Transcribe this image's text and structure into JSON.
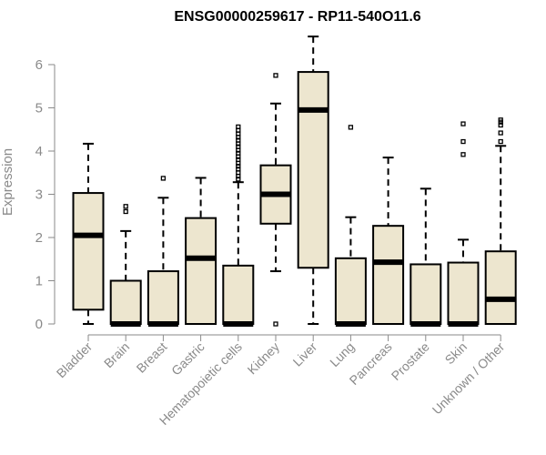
{
  "chart_data": {
    "type": "boxplot",
    "title": "ENSG00000259617 - RP11-540O11.6",
    "xlabel": "",
    "ylabel": "Expression",
    "ylim": [
      0,
      6.8
    ],
    "yticks": [
      0,
      1,
      2,
      3,
      4,
      5,
      6
    ],
    "grid": false,
    "colors": {
      "box_fill": "#ede6cf",
      "stroke": "#000000",
      "axis": "#8a8a8a"
    },
    "categories": [
      "Bladder",
      "Brain",
      "Breast",
      "Gastric",
      "Hematopoietic cells",
      "Kidney",
      "Liver",
      "Lung",
      "Pancreas",
      "Prostate",
      "Skin",
      "Unknown / Other"
    ],
    "boxes": [
      {
        "category": "Bladder",
        "whisker_low": 0.0,
        "q1": 0.33,
        "median": 2.05,
        "q3": 3.03,
        "whisker_high": 4.17,
        "outliers": []
      },
      {
        "category": "Brain",
        "whisker_low": 0.0,
        "q1": 0.0,
        "median": 0.0,
        "q3": 1.0,
        "whisker_high": 2.15,
        "outliers": [
          2.6,
          2.72
        ]
      },
      {
        "category": "Breast",
        "whisker_low": 0.0,
        "q1": 0.0,
        "median": 0.0,
        "q3": 1.22,
        "whisker_high": 2.92,
        "outliers": [
          3.37
        ]
      },
      {
        "category": "Gastric",
        "whisker_low": 0.0,
        "q1": 0.0,
        "median": 1.52,
        "q3": 2.45,
        "whisker_high": 3.38,
        "outliers": []
      },
      {
        "category": "Hematopoietic cells",
        "whisker_low": 0.0,
        "q1": 0.0,
        "median": 0.0,
        "q3": 1.35,
        "whisker_high": 3.28,
        "outliers": [
          3.35,
          3.42,
          3.5,
          3.58,
          3.65,
          3.72,
          3.8,
          3.87,
          3.95,
          4.02,
          4.1,
          4.17,
          4.25,
          4.32,
          4.4,
          4.48,
          4.56
        ]
      },
      {
        "category": "Kidney",
        "whisker_low": 1.22,
        "q1": 2.32,
        "median": 3.0,
        "q3": 3.67,
        "whisker_high": 5.1,
        "outliers": [
          5.75,
          0.0
        ]
      },
      {
        "category": "Liver",
        "whisker_low": 0.0,
        "q1": 1.3,
        "median": 4.95,
        "q3": 5.83,
        "whisker_high": 6.65,
        "outliers": []
      },
      {
        "category": "Lung",
        "whisker_low": 0.0,
        "q1": 0.0,
        "median": 0.0,
        "q3": 1.52,
        "whisker_high": 2.47,
        "outliers": [
          4.55
        ]
      },
      {
        "category": "Pancreas",
        "whisker_low": 0.0,
        "q1": 0.0,
        "median": 1.43,
        "q3": 2.27,
        "whisker_high": 3.85,
        "outliers": []
      },
      {
        "category": "Prostate",
        "whisker_low": 0.0,
        "q1": 0.0,
        "median": 0.0,
        "q3": 1.38,
        "whisker_high": 3.13,
        "outliers": []
      },
      {
        "category": "Skin",
        "whisker_low": 0.0,
        "q1": 0.0,
        "median": 0.0,
        "q3": 1.42,
        "whisker_high": 1.95,
        "outliers": [
          3.92,
          4.22,
          4.63
        ]
      },
      {
        "category": "Unknown / Other",
        "whisker_low": 0.0,
        "q1": 0.0,
        "median": 0.57,
        "q3": 1.68,
        "whisker_high": 4.12,
        "outliers": [
          4.22,
          4.42,
          4.6,
          4.67,
          4.72
        ]
      }
    ]
  }
}
